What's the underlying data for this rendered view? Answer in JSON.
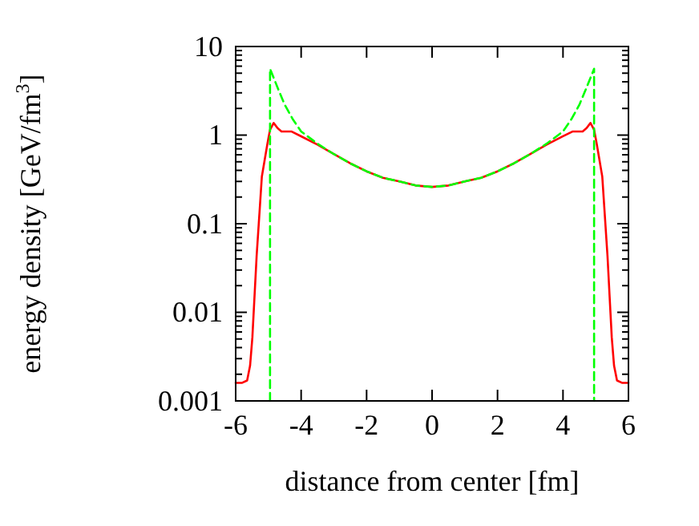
{
  "chart_data": {
    "type": "line",
    "xlabel": "distance from center [fm]",
    "ylabel": "energy density [GeV/fm$^{3}$]",
    "log": "y",
    "xlim": [
      -6,
      6
    ],
    "ylim": [
      0.001,
      10
    ],
    "xticks": [
      -6,
      -4,
      -2,
      0,
      2,
      4,
      6
    ],
    "yticks": [
      {
        "value": 0.001,
        "label": "0.001"
      },
      {
        "value": 0.002,
        "label": null
      },
      {
        "value": 0.003,
        "label": null
      },
      {
        "value": 0.004,
        "label": null
      },
      {
        "value": 0.005,
        "label": null
      },
      {
        "value": 0.006,
        "label": null
      },
      {
        "value": 0.007,
        "label": null
      },
      {
        "value": 0.008,
        "label": null
      },
      {
        "value": 0.009,
        "label": null
      },
      {
        "value": 0.01,
        "label": "0.01"
      },
      {
        "value": 0.02,
        "label": null
      },
      {
        "value": 0.03,
        "label": null
      },
      {
        "value": 0.04,
        "label": null
      },
      {
        "value": 0.05,
        "label": null
      },
      {
        "value": 0.06,
        "label": null
      },
      {
        "value": 0.07,
        "label": null
      },
      {
        "value": 0.08,
        "label": null
      },
      {
        "value": 0.09,
        "label": null
      },
      {
        "value": 0.1,
        "label": "0.1"
      },
      {
        "value": 0.2,
        "label": null
      },
      {
        "value": 0.3,
        "label": null
      },
      {
        "value": 0.4,
        "label": null
      },
      {
        "value": 0.5,
        "label": null
      },
      {
        "value": 0.6,
        "label": null
      },
      {
        "value": 0.7,
        "label": null
      },
      {
        "value": 0.8,
        "label": null
      },
      {
        "value": 0.9,
        "label": null
      },
      {
        "value": 1,
        "label": "1"
      },
      {
        "value": 2,
        "label": null
      },
      {
        "value": 3,
        "label": null
      },
      {
        "value": 4,
        "label": null
      },
      {
        "value": 5,
        "label": null
      },
      {
        "value": 6,
        "label": null
      },
      {
        "value": 7,
        "label": null
      },
      {
        "value": 8,
        "label": null
      },
      {
        "value": 9,
        "label": null
      },
      {
        "value": 10,
        "label": "10"
      }
    ],
    "grid": false,
    "series": [
      {
        "color": "#ff0000",
        "line_style": "solid",
        "x": [
          -6,
          -5.8,
          -5.65,
          -5.56,
          -5.49,
          -5.36,
          -5.2,
          -5.03,
          -4.95,
          -4.84,
          -4.72,
          -4.6,
          -4.3,
          -4.0,
          -3.5,
          -3,
          -2.5,
          -2,
          -1.5,
          -1,
          -0.5,
          0,
          0.5,
          1,
          1.5,
          2,
          2.5,
          3,
          3.5,
          4.0,
          4.3,
          4.6,
          4.72,
          4.84,
          4.95,
          5.03,
          5.2,
          5.36,
          5.49,
          5.56,
          5.65,
          5.8,
          6
        ],
        "values": [
          0.0016,
          0.0016,
          0.0017,
          0.0025,
          0.0052,
          0.043,
          0.34,
          0.8,
          1.15,
          1.37,
          1.2,
          1.1,
          1.1,
          0.97,
          0.78,
          0.61,
          0.48,
          0.39,
          0.33,
          0.3,
          0.27,
          0.26,
          0.27,
          0.3,
          0.33,
          0.39,
          0.48,
          0.61,
          0.78,
          0.97,
          1.1,
          1.1,
          1.2,
          1.37,
          1.15,
          0.8,
          0.34,
          0.043,
          0.0052,
          0.0025,
          0.0017,
          0.0016,
          0.0016
        ]
      },
      {
        "color": "#00ff00",
        "line_style": "dashed",
        "x": [
          -4.95,
          -4.95,
          -4.7,
          -4.5,
          -4.25,
          -4,
          -3.5,
          -3,
          -2.5,
          -2,
          -1.5,
          -1,
          -0.5,
          0,
          0.5,
          1,
          1.5,
          2,
          2.5,
          3,
          3.5,
          4,
          4.25,
          4.5,
          4.7,
          4.95,
          4.95
        ],
        "values": [
          0.001,
          5.6,
          3.3,
          2.2,
          1.5,
          1.1,
          0.8,
          0.61,
          0.48,
          0.39,
          0.33,
          0.3,
          0.27,
          0.26,
          0.27,
          0.3,
          0.33,
          0.39,
          0.48,
          0.61,
          0.8,
          1.1,
          1.5,
          2.2,
          3.3,
          5.6,
          0.001
        ]
      }
    ]
  }
}
